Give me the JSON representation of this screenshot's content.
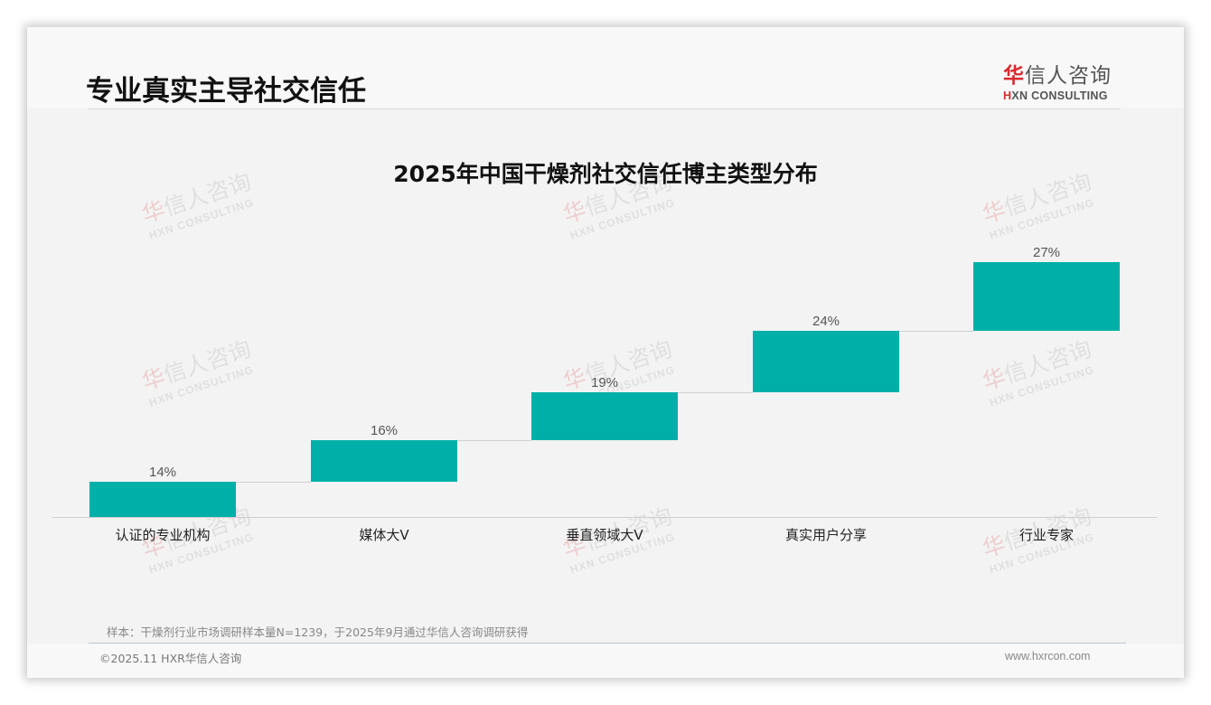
{
  "header": {
    "title": "专业真实主导社交信任",
    "logo": {
      "cn_red": "华",
      "cn_rest": "信人咨询",
      "en_red": "H",
      "en_rest": "XN CONSULTING"
    }
  },
  "watermark": {
    "cn_red": "华",
    "cn_rest": "信人咨询",
    "en": "HXN CONSULTING"
  },
  "chart_data": {
    "type": "bar",
    "subtype": "waterfall-step",
    "title": "2025年中国干燥剂社交信任博主类型分布",
    "categories": [
      "认证的专业机构",
      "媒体大V",
      "垂直领域大V",
      "真实用户分享",
      "行业专家"
    ],
    "values": [
      14,
      16,
      19,
      24,
      27
    ],
    "value_labels": [
      "14%",
      "16%",
      "19%",
      "24%",
      "27%"
    ],
    "unit": "%",
    "total": 100,
    "xlabel": "",
    "ylabel": "",
    "ylim": [
      0,
      100
    ],
    "grid": false,
    "legend": "none",
    "bar_color": "#00b0a8"
  },
  "footer": {
    "source": "样本：干燥剂行业市场调研样本量N=1239，于2025年9月通过华信人咨询调研获得",
    "copyright": "©2025.11 HXR华信人咨询",
    "website": "www.hxrcon.com"
  },
  "colors": {
    "accent": "#00b0a8",
    "brand_red": "#d9282d",
    "background": "#f3f3f3"
  }
}
